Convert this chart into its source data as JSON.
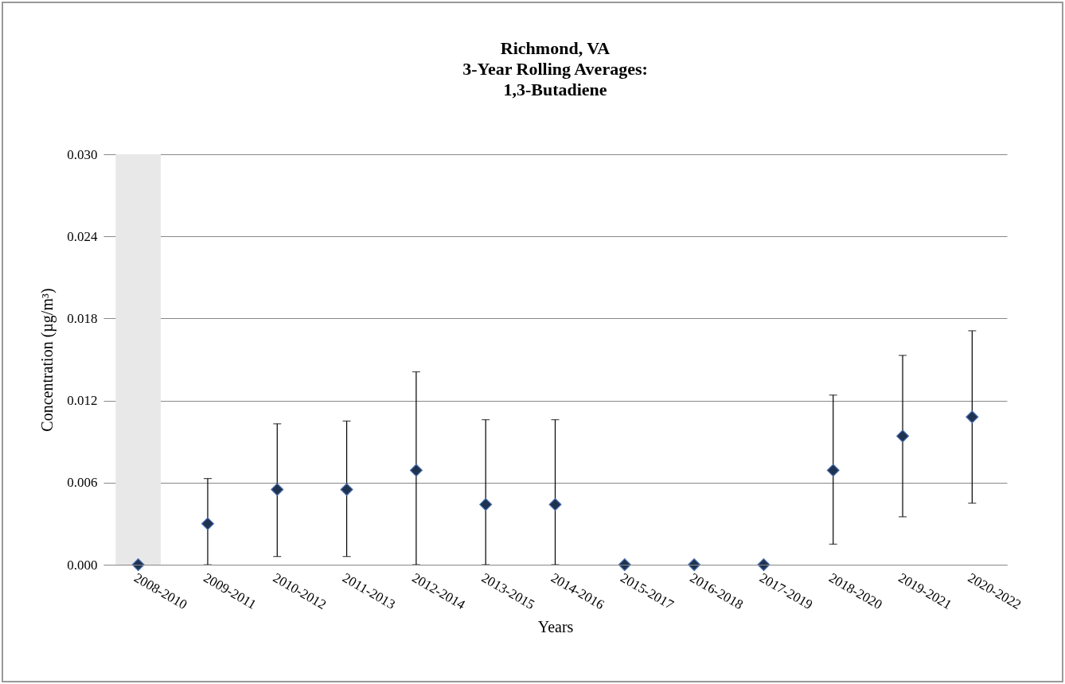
{
  "chart_data": {
    "type": "scatter",
    "title": "Richmond, VA\n3-Year Rolling Averages:\n1,3-Butadiene",
    "xlabel": "Years",
    "ylabel": "Concentration (µg/m³)",
    "categories": [
      "2008-2010",
      "2009-2011",
      "2010-2012",
      "2011-2013",
      "2012-2014",
      "2013-2015",
      "2014-2016",
      "2015-2017",
      "2016-2018",
      "2017-2019",
      "2018-2020",
      "2019-2021",
      "2020-2022"
    ],
    "series": [
      {
        "color": "#1f3350",
        "values": [
          0,
          0.003,
          0.0055,
          0.0055,
          0.0069,
          0.0044,
          0.0044,
          0,
          0,
          0,
          0.0069,
          0.0094,
          0.0108
        ],
        "errors": [
          null,
          [
            0,
            0.0063
          ],
          [
            0.0006,
            0.0103
          ],
          [
            0.0006,
            0.0105
          ],
          [
            0,
            0.0141
          ],
          [
            0,
            0.0106
          ],
          [
            0,
            0.0106
          ],
          null,
          null,
          null,
          [
            0.0015,
            0.0124
          ],
          [
            0.0035,
            0.0153
          ],
          [
            0.0045,
            0.0171
          ]
        ]
      }
    ],
    "ylim": [
      0,
      0.03
    ],
    "yticks": [
      {
        "value": 0,
        "label": "0.000"
      },
      {
        "value": 0.006,
        "label": "0.006"
      },
      {
        "value": 0.012,
        "label": "0.012"
      },
      {
        "value": 0.018,
        "label": "0.018"
      },
      {
        "value": 0.024,
        "label": "0.024"
      },
      {
        "value": 0.03,
        "label": "0.030"
      }
    ],
    "bands": [
      {
        "axis": "x",
        "from": "2008-2010",
        "to": "2008-2010",
        "color": "#e8e8e8"
      }
    ],
    "grid": "y",
    "marker": "diamond"
  }
}
